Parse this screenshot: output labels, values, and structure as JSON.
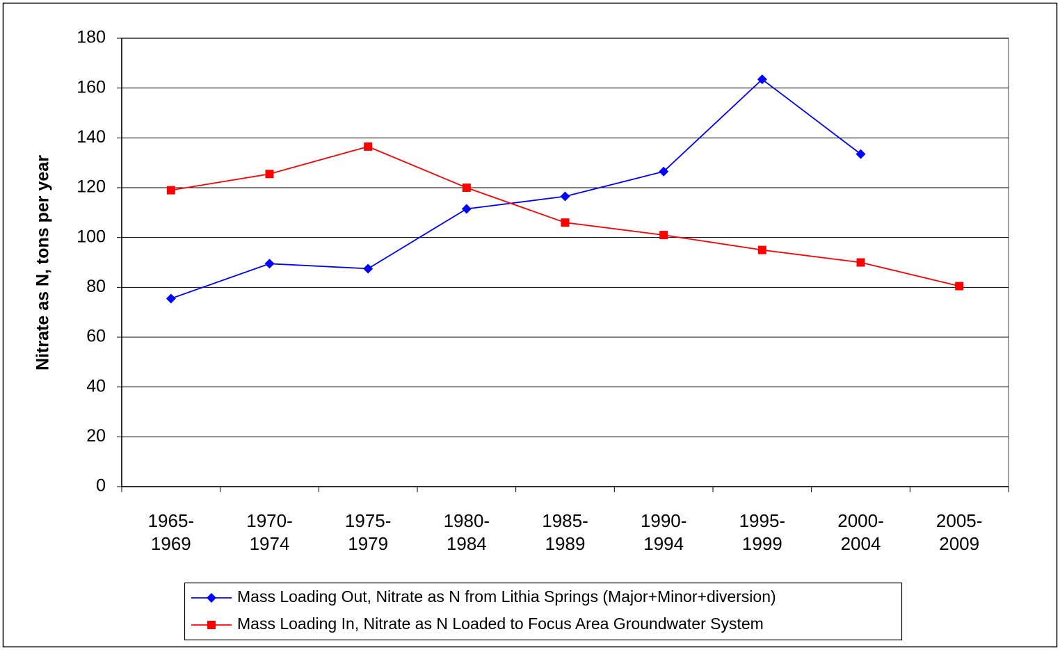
{
  "chart_data": {
    "type": "line",
    "y_label": "Nitrate as N, tons per year",
    "categories": [
      "1965-1969",
      "1970-1974",
      "1975-1979",
      "1980-1984",
      "1985-1989",
      "1990-1994",
      "1995-1999",
      "2000-2004",
      "2005-2009"
    ],
    "series": [
      {
        "name": "Mass Loading Out, Nitrate as N from Lithia Springs (Major+Minor+diversion)",
        "color": "#0000ff",
        "marker": "diamond",
        "values": [
          75.5,
          89.5,
          87.5,
          111.5,
          116.5,
          126.5,
          163.5,
          133.5,
          null
        ]
      },
      {
        "name": "Mass Loading In, Nitrate as N Loaded to Focus Area Groundwater System",
        "color": "#ff0000",
        "marker": "square",
        "values": [
          119,
          125.5,
          136.5,
          120,
          106,
          101,
          95,
          90,
          80.5
        ]
      }
    ],
    "ylim": [
      0,
      180
    ],
    "yticks": [
      0,
      20,
      40,
      60,
      80,
      100,
      120,
      140,
      160,
      180
    ],
    "grid": true,
    "legend": "bottom"
  }
}
